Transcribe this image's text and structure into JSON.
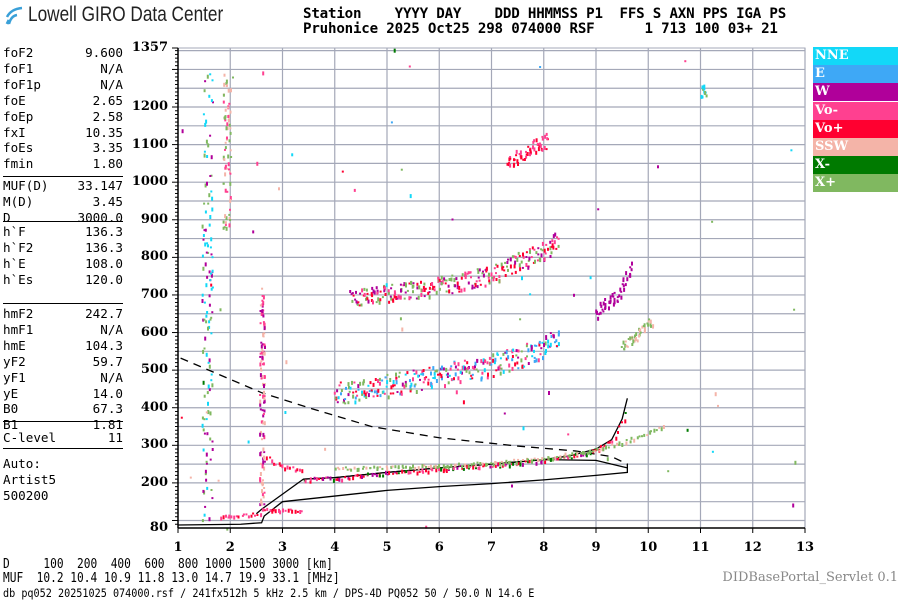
{
  "logo": {
    "text": "Lowell GIRO Data Center"
  },
  "header": {
    "line1": "Station    YYYY DAY    DDD HHMMSS P1  FFS S AXN PPS IGA PS",
    "line2": "Pruhonice 2025 Oct25 298 074000 RSF      1 713 100 03+ 21"
  },
  "params": {
    "group1": [
      {
        "name": "foF2",
        "value": "9.600"
      },
      {
        "name": "foF1",
        "value": "N/A"
      },
      {
        "name": "foF1p",
        "value": "N/A"
      },
      {
        "name": "foE",
        "value": "2.65"
      },
      {
        "name": "foEp",
        "value": "2.58"
      },
      {
        "name": "fxI",
        "value": "10.35"
      },
      {
        "name": "foEs",
        "value": "3.35"
      },
      {
        "name": "fmin",
        "value": "1.80"
      }
    ],
    "group2": [
      {
        "name": "MUF(D)",
        "value": "33.147"
      },
      {
        "name": "M(D)",
        "value": "3.45"
      },
      {
        "name": "D",
        "value": "3000.0"
      }
    ],
    "group3": [
      {
        "name": "h`F",
        "value": "136.3"
      },
      {
        "name": "h`F2",
        "value": "136.3"
      },
      {
        "name": "h`E",
        "value": "108.0"
      },
      {
        "name": "h`Es",
        "value": "120.0"
      }
    ],
    "group4": [
      {
        "name": "hmF2",
        "value": "242.7"
      },
      {
        "name": "hmF1",
        "value": "N/A"
      },
      {
        "name": "hmE",
        "value": "104.3"
      },
      {
        "name": "yF2",
        "value": "59.7"
      },
      {
        "name": "yF1",
        "value": "N/A"
      },
      {
        "name": "yE",
        "value": "14.0"
      },
      {
        "name": "B0",
        "value": "67.3"
      },
      {
        "name": "B1",
        "value": "1.81"
      }
    ],
    "group5": [
      {
        "name": "C-level",
        "value": "11"
      }
    ],
    "auto": [
      "Auto:",
      "Artist5",
      "500200"
    ]
  },
  "legend": [
    {
      "label": "NNE",
      "color": "#12d8f8"
    },
    {
      "label": "E",
      "color": "#3ea8f6"
    },
    {
      "label": "W",
      "color": "#b0009a"
    },
    {
      "label": "Vo-",
      "color": "#ff4090"
    },
    {
      "label": "Vo+",
      "color": "#ff0030"
    },
    {
      "label": "SSW",
      "color": "#f4b4a8"
    },
    {
      "label": "X-",
      "color": "#007a00"
    },
    {
      "label": "X+",
      "color": "#80b860"
    }
  ],
  "bottom": {
    "d_row": "D     100  200  400  600  800 1000 1500 3000 [km]",
    "muf_row": "MUF  10.2 10.4 10.9 11.8 13.0 14.7 19.9 33.1 [MHz]",
    "file_info": "db pq052 20251025 074000.rsf / 241fx512h 5 kHz 2.5 km / DPS-4D PQ052 50 / 50.0 N 14.6 E",
    "servlet": "DIDBasePortal_Servlet 0.1"
  },
  "chart_data": {
    "type": "scatter",
    "xlabel": "",
    "ylabel": "",
    "xlim": [
      1,
      13
    ],
    "ylim": [
      80,
      1357
    ],
    "x_ticks": [
      "1",
      "2",
      "3",
      "4",
      "5",
      "6",
      "7",
      "8",
      "9",
      "10",
      "11",
      "12",
      "13"
    ],
    "y_ticks": [
      "1357",
      "1200",
      "1100",
      "1000",
      "900",
      "800",
      "700",
      "600",
      "500",
      "400",
      "300",
      "200",
      "80"
    ],
    "grid": true,
    "grid_y_step_km": 50,
    "legend_placement": "right",
    "traces": [
      {
        "label": "E",
        "colors": [
          "Vo+",
          "Vo-"
        ],
        "spread": 4,
        "points": [
          [
            1.8,
            112
          ],
          [
            2.2,
            115
          ],
          [
            2.6,
            120
          ]
        ]
      },
      {
        "label": "Es",
        "colors": [
          "Vo-",
          "Vo+"
        ],
        "spread": 4,
        "points": [
          [
            2.6,
            130
          ],
          [
            3.4,
            128
          ]
        ]
      },
      {
        "label": "Es2",
        "colors": [
          "Vo-",
          "Vo+"
        ],
        "spread": 6,
        "points": [
          [
            2.7,
            270
          ],
          [
            3.0,
            245
          ],
          [
            3.4,
            238
          ]
        ]
      },
      {
        "label": "F2-O",
        "colors": [
          "Vo+",
          "Vo-",
          "Vo+",
          "W",
          "X-"
        ],
        "spread": 5,
        "points": [
          [
            3.4,
            210
          ],
          [
            4,
            214
          ],
          [
            5,
            228
          ],
          [
            6,
            240
          ],
          [
            7,
            250
          ],
          [
            8,
            262
          ],
          [
            8.5,
            272
          ],
          [
            9,
            290
          ],
          [
            9.3,
            315
          ],
          [
            9.5,
            360
          ],
          [
            9.6,
            400
          ]
        ]
      },
      {
        "label": "F2-X",
        "colors": [
          "X+",
          "X+",
          "SSW"
        ],
        "spread": 4,
        "points": [
          [
            4,
            240
          ],
          [
            5,
            244
          ],
          [
            6,
            248
          ],
          [
            7,
            255
          ],
          [
            8,
            268
          ],
          [
            9,
            290
          ],
          [
            9.5,
            310
          ],
          [
            10,
            335
          ],
          [
            10.3,
            355
          ]
        ]
      },
      {
        "label": "2F",
        "colors": [
          "Vo-",
          "Vo+",
          "W",
          "NNE",
          "X+",
          "E"
        ],
        "spread": 30,
        "points": [
          [
            4,
            440
          ],
          [
            5,
            462
          ],
          [
            6,
            488
          ],
          [
            7,
            515
          ],
          [
            7.5,
            535
          ],
          [
            8,
            560
          ],
          [
            8.3,
            590
          ]
        ]
      },
      {
        "label": "3F",
        "colors": [
          "Vo-",
          "Vo+",
          "X+",
          "W"
        ],
        "spread": 25,
        "points": [
          [
            4.3,
            695
          ],
          [
            5,
            705
          ],
          [
            6,
            725
          ],
          [
            7,
            755
          ],
          [
            7.5,
            790
          ],
          [
            8,
            820
          ],
          [
            8.3,
            850
          ]
        ]
      },
      {
        "label": "4F",
        "colors": [
          "Vo-",
          "Vo+"
        ],
        "spread": 20,
        "points": [
          [
            7.3,
            1060
          ],
          [
            7.8,
            1095
          ],
          [
            8.1,
            1115
          ]
        ]
      },
      {
        "label": "2X",
        "colors": [
          "W"
        ],
        "spread": 20,
        "points": [
          [
            9,
            660
          ],
          [
            9.4,
            700
          ],
          [
            9.7,
            790
          ]
        ]
      },
      {
        "label": "2X+",
        "colors": [
          "SSW",
          "X+"
        ],
        "spread": 15,
        "points": [
          [
            9.5,
            565
          ],
          [
            9.8,
            600
          ],
          [
            10.1,
            635
          ]
        ]
      }
    ],
    "noise": [
      {
        "freq": [
          1.45,
          1.65
        ],
        "height": [
          100,
          1290
        ],
        "colors": [
          "NNE",
          "X+",
          "W"
        ],
        "count": 120
      },
      {
        "freq": [
          1.85,
          2.0
        ],
        "height": [
          880,
          1290
        ],
        "colors": [
          "SSW",
          "Vo-",
          "X+"
        ],
        "count": 70
      },
      {
        "freq": [
          2.55,
          2.65
        ],
        "height": [
          130,
          720
        ],
        "colors": [
          "Vo-",
          "SSW",
          "W"
        ],
        "count": 110
      },
      {
        "freq": [
          11.0,
          11.1
        ],
        "height": [
          1230,
          1260
        ],
        "colors": [
          "NNE",
          "X+"
        ],
        "count": 12
      },
      {
        "freq": [
          1.0,
          13.0
        ],
        "height": [
          80,
          1357
        ],
        "colors": [
          "NNE",
          "E",
          "W",
          "Vo-",
          "Vo+",
          "SSW",
          "X-",
          "X+"
        ],
        "count": 60
      }
    ],
    "profile_solid": [
      [
        1.0,
        88
      ],
      [
        2.2,
        90
      ],
      [
        2.6,
        94
      ],
      [
        2.65,
        112
      ],
      [
        3.0,
        150
      ],
      [
        4,
        165
      ],
      [
        5,
        180
      ],
      [
        6,
        190
      ],
      [
        7,
        198
      ],
      [
        8,
        208
      ],
      [
        9,
        220
      ],
      [
        9.6,
        228
      ],
      [
        9.6,
        240
      ],
      [
        9.0,
        260
      ],
      [
        8.0,
        262
      ],
      [
        7,
        250
      ],
      [
        6,
        240
      ],
      [
        5,
        228
      ],
      [
        4,
        214
      ],
      [
        3.4,
        210
      ],
      [
        2.6,
        130
      ],
      [
        2.5,
        118
      ]
    ],
    "profile_solid_top": [
      [
        3.4,
        210
      ],
      [
        4,
        214
      ],
      [
        5,
        228
      ],
      [
        6,
        240
      ],
      [
        7,
        250
      ],
      [
        8,
        262
      ],
      [
        8.5,
        272
      ],
      [
        9,
        290
      ],
      [
        9.3,
        315
      ],
      [
        9.5,
        370
      ],
      [
        9.6,
        425
      ]
    ],
    "profile_dashed": [
      [
        1.05,
        532
      ],
      [
        2.6,
        440
      ],
      [
        3.5,
        400
      ],
      [
        4.7,
        350
      ],
      [
        6.0,
        320
      ],
      [
        7.5,
        298
      ],
      [
        8.6,
        285
      ],
      [
        9.3,
        270
      ],
      [
        9.6,
        250
      ],
      [
        9.6,
        240
      ]
    ]
  }
}
